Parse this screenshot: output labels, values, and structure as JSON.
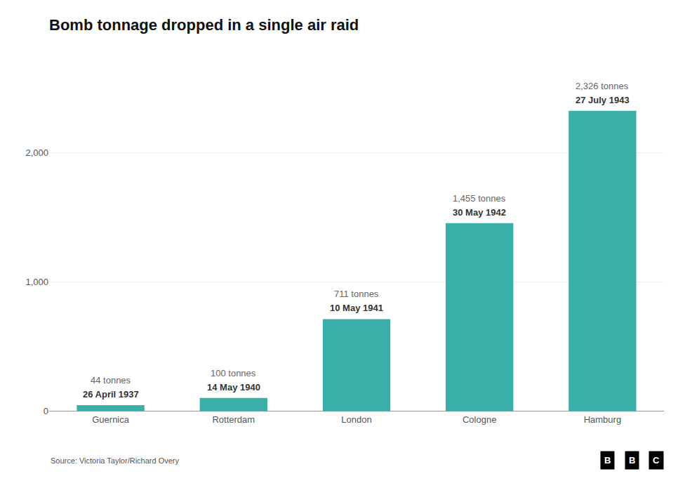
{
  "chart_data": {
    "type": "bar",
    "title": "Bomb tonnage dropped in a single air raid",
    "categories": [
      "Guernica",
      "Rotterdam",
      "London",
      "Cologne",
      "Hamburg"
    ],
    "values": [
      44,
      100,
      711,
      1455,
      2326
    ],
    "value_labels": [
      "44 tonnes",
      "100 tonnes",
      "711 tonnes",
      "1,455 tonnes",
      "2,326 tonnes"
    ],
    "data_labels": true,
    "color": "#3aafa9",
    "ylim": [
      0,
      2750
    ],
    "yticks": [
      0,
      {
        "value": 1000,
        "label": "1,000"
      },
      {
        "value": 2000,
        "label": "2,000"
      }
    ],
    "grid": true,
    "annotations": [
      {
        "category": "Guernica",
        "text": "26 April 1937"
      },
      {
        "category": "Rotterdam",
        "text": "14 May 1940"
      },
      {
        "category": "London",
        "text": "10 May 1941"
      },
      {
        "category": "Cologne",
        "text": "30 May 1942"
      },
      {
        "category": "Hamburg",
        "text": "27 July 1943"
      },
      {
        "text": "Source: Victoria Taylor/Richard Overy"
      },
      {
        "text": "BBC"
      }
    ]
  }
}
